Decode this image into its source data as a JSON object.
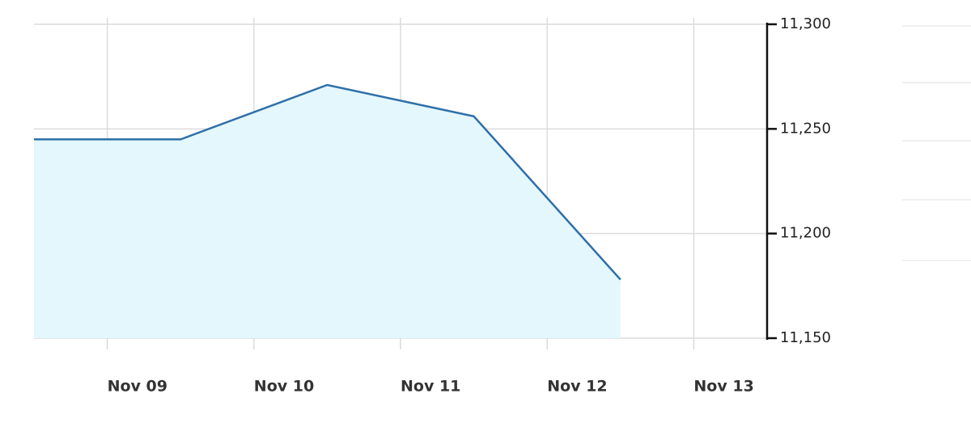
{
  "chart_data": {
    "type": "area",
    "x": [
      8.5,
      9.5,
      10.5,
      11.5,
      12.5
    ],
    "values": [
      11245,
      11245,
      11271,
      11256,
      11178
    ],
    "color": "#2f6fa8",
    "fill": "#e3f7fc",
    "xlim": [
      8.5,
      13.5
    ],
    "xticks": [
      {
        "value": 9,
        "label": "Nov 09"
      },
      {
        "value": 10,
        "label": "Nov 10"
      },
      {
        "value": 11,
        "label": "Nov 11"
      },
      {
        "value": 12,
        "label": "Nov 12"
      },
      {
        "value": 13,
        "label": "Nov 13"
      }
    ],
    "ylim": [
      11150,
      11300
    ],
    "yticks": [
      {
        "value": 11150,
        "label": "11,150"
      },
      {
        "value": 11200,
        "label": "11,200"
      },
      {
        "value": 11250,
        "label": "11,250"
      },
      {
        "value": 11300,
        "label": "11,300"
      }
    ],
    "grid": true
  }
}
